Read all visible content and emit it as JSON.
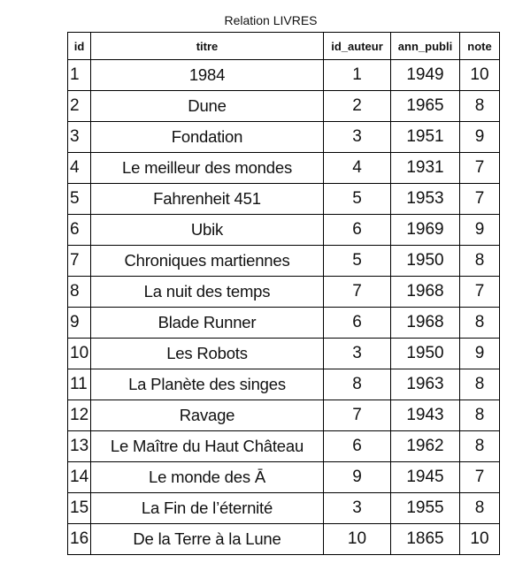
{
  "caption": "Relation LIVRES",
  "columns": [
    "id",
    "titre",
    "id_auteur",
    "ann_publi",
    "note"
  ],
  "rows": [
    {
      "id": "1",
      "titre": "1984",
      "id_auteur": "1",
      "ann_publi": "1949",
      "note": "10"
    },
    {
      "id": "2",
      "titre": "Dune",
      "id_auteur": "2",
      "ann_publi": "1965",
      "note": "8"
    },
    {
      "id": "3",
      "titre": "Fondation",
      "id_auteur": "3",
      "ann_publi": "1951",
      "note": "9"
    },
    {
      "id": "4",
      "titre": "Le meilleur des mondes",
      "id_auteur": "4",
      "ann_publi": "1931",
      "note": "7"
    },
    {
      "id": "5",
      "titre": "Fahrenheit 451",
      "id_auteur": "5",
      "ann_publi": "1953",
      "note": "7"
    },
    {
      "id": "6",
      "titre": "Ubik",
      "id_auteur": "6",
      "ann_publi": "1969",
      "note": "9"
    },
    {
      "id": "7",
      "titre": "Chroniques martiennes",
      "id_auteur": "5",
      "ann_publi": "1950",
      "note": "8"
    },
    {
      "id": "8",
      "titre": "La nuit des temps",
      "id_auteur": "7",
      "ann_publi": "1968",
      "note": "7"
    },
    {
      "id": "9",
      "titre": "Blade Runner",
      "id_auteur": "6",
      "ann_publi": "1968",
      "note": "8"
    },
    {
      "id": "10",
      "titre": "Les Robots",
      "id_auteur": "3",
      "ann_publi": "1950",
      "note": "9"
    },
    {
      "id": "11",
      "titre": "La Planète des singes",
      "id_auteur": "8",
      "ann_publi": "1963",
      "note": "8"
    },
    {
      "id": "12",
      "titre": "Ravage",
      "id_auteur": "7",
      "ann_publi": "1943",
      "note": "8"
    },
    {
      "id": "13",
      "titre": "Le Maître du Haut Château",
      "id_auteur": "6",
      "ann_publi": "1962",
      "note": "8"
    },
    {
      "id": "14",
      "titre": "Le monde des Ā",
      "id_auteur": "9",
      "ann_publi": "1945",
      "note": "7"
    },
    {
      "id": "15",
      "titre": "La Fin de l’éternité",
      "id_auteur": "3",
      "ann_publi": "1955",
      "note": "8"
    },
    {
      "id": "16",
      "titre": "De la Terre à la Lune",
      "id_auteur": "10",
      "ann_publi": "1865",
      "note": "10"
    }
  ]
}
